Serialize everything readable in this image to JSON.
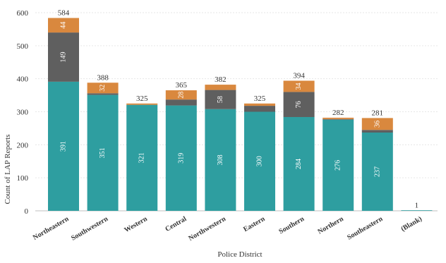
{
  "chart_data": {
    "type": "bar",
    "stacked": true,
    "xlabel": "Police District",
    "ylabel": "Count of LAP Reports",
    "ylim": [
      0,
      600
    ],
    "yticks": [
      0,
      100,
      200,
      300,
      400,
      500,
      600
    ],
    "grid": true,
    "categories": [
      "Northeastern",
      "Southwestern",
      "Western",
      "Central",
      "Northwestern",
      "Eastern",
      "Southern",
      "Northern",
      "Southeastern",
      "(Blank)"
    ],
    "series": [
      {
        "color": "#2e9ea0",
        "values": [
          391,
          351,
          321,
          319,
          308,
          300,
          284,
          276,
          237,
          1
        ]
      },
      {
        "color": "#5f5f5f",
        "values": [
          149,
          5,
          0,
          18,
          58,
          18,
          76,
          2,
          8,
          0
        ]
      },
      {
        "color": "#d9883e",
        "values": [
          44,
          32,
          4,
          28,
          16,
          7,
          34,
          4,
          36,
          0
        ]
      }
    ],
    "totals": [
      584,
      388,
      325,
      365,
      382,
      325,
      394,
      282,
      281,
      1
    ],
    "segment_labels": [
      [
        "391",
        "149",
        "44"
      ],
      [
        "351",
        "",
        "32"
      ],
      [
        "321",
        "",
        ""
      ],
      [
        "319",
        "",
        "28"
      ],
      [
        "308",
        "58",
        ""
      ],
      [
        "300",
        "",
        ""
      ],
      [
        "284",
        "76",
        "34"
      ],
      [
        "276",
        "",
        ""
      ],
      [
        "237",
        "",
        "36"
      ],
      [
        "",
        "",
        ""
      ]
    ]
  }
}
